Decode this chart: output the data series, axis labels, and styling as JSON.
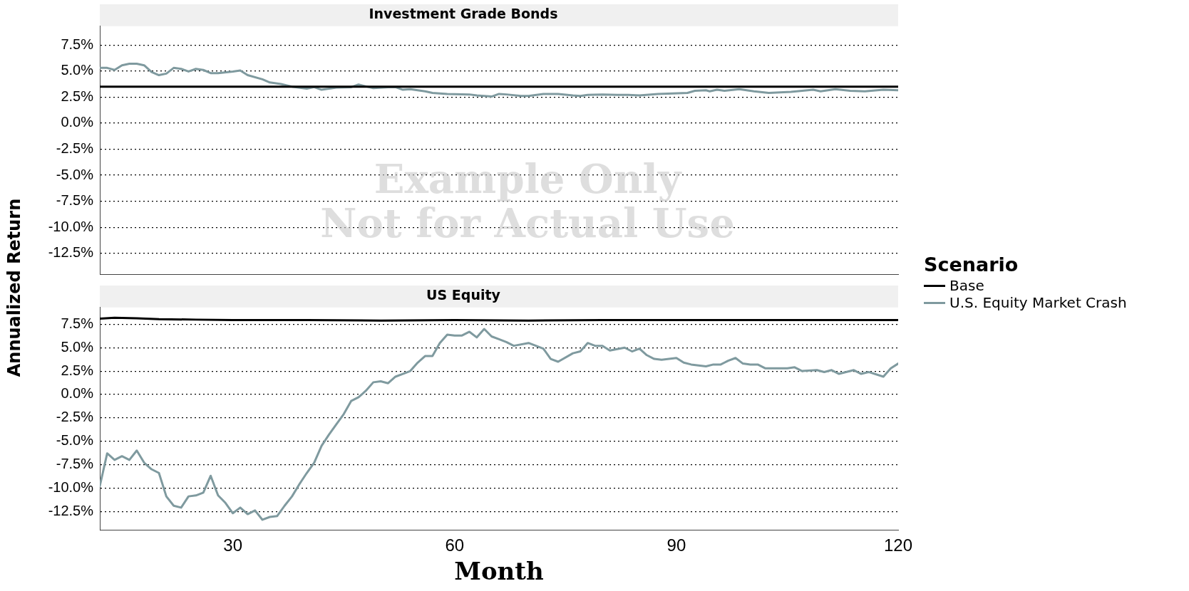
{
  "chart_data": [
    {
      "type": "line",
      "title": "Investment Grade Bonds",
      "ylabel": "Annualized Return",
      "legend_title": "Scenario",
      "legend": "right",
      "grid": "y",
      "marker": "none",
      "line_style": "solid",
      "tick_labels": "y",
      "annotations": [
        "Example Only\nNot for Actual Use"
      ],
      "xlim": [
        12,
        120
      ],
      "xticks": [
        30,
        60,
        90,
        120
      ],
      "ylim": [
        -14.5,
        9.3
      ],
      "yticks": [
        {
          "value": 7.5,
          "label": "7.5%"
        },
        {
          "value": 5,
          "label": "5.0%"
        },
        {
          "value": 2.5,
          "label": "2.5%"
        },
        {
          "value": 0,
          "label": "0.0%"
        },
        {
          "value": -2.5,
          "label": "-2.5%"
        },
        {
          "value": -5,
          "label": "-5.0%"
        },
        {
          "value": -7.5,
          "label": "-7.5%"
        },
        {
          "value": -10,
          "label": "-10.0%"
        },
        {
          "value": -12.5,
          "label": "-12.5%"
        }
      ],
      "series": [
        {
          "name": "Base",
          "color": "#000000",
          "x": [
            12,
            30,
            60,
            90,
            120
          ],
          "values": [
            3.5,
            3.5,
            3.5,
            3.5,
            3.5
          ]
        },
        {
          "name": "U.S. Equity Market Crash",
          "color": "#7f9a9f",
          "x": [
            12,
            13,
            14,
            15,
            16,
            17,
            18,
            19,
            20,
            21,
            22,
            23,
            24,
            25,
            26,
            27,
            28,
            30,
            31,
            32,
            34,
            35,
            36.5,
            38,
            40,
            41,
            42,
            44,
            46,
            47,
            49,
            51,
            52,
            53,
            54,
            56,
            57,
            59,
            62,
            63,
            65,
            66,
            67,
            69,
            70,
            72,
            74,
            76,
            77,
            78,
            80,
            82,
            83.5,
            85,
            87.5,
            91.5,
            92.5,
            94,
            94.5,
            95.5,
            96.5,
            98.5,
            100.5,
            102.5,
            105.5,
            108.5,
            109.5,
            111.5,
            113.5,
            115.5,
            118,
            120
          ],
          "values": [
            5.3,
            5.3,
            5.1,
            5.55,
            5.7,
            5.7,
            5.55,
            4.9,
            4.6,
            4.75,
            5.3,
            5.2,
            4.95,
            5.2,
            5.1,
            4.8,
            4.8,
            4.95,
            5.05,
            4.6,
            4.2,
            3.9,
            3.75,
            3.5,
            3.3,
            3.45,
            3.2,
            3.4,
            3.45,
            3.7,
            3.35,
            3.45,
            3.45,
            3.2,
            3.25,
            3.05,
            2.9,
            2.8,
            2.75,
            2.65,
            2.55,
            2.8,
            2.75,
            2.6,
            2.6,
            2.8,
            2.8,
            2.65,
            2.6,
            2.7,
            2.75,
            2.7,
            2.7,
            2.65,
            2.8,
            2.9,
            3.1,
            3.15,
            3.05,
            3.2,
            3.1,
            3.25,
            3.05,
            2.9,
            3.0,
            3.2,
            3.05,
            3.25,
            3.1,
            3.05,
            3.2,
            3.15
          ]
        }
      ]
    },
    {
      "type": "line",
      "title": "US Equity",
      "xlabel": "Month",
      "grid": "y",
      "marker": "none",
      "line_style": "solid",
      "legend": false,
      "xlim": [
        12,
        120
      ],
      "xticks": [
        30,
        60,
        90,
        120
      ],
      "ylim": [
        -14.5,
        9.3
      ],
      "yticks": [
        {
          "value": 7.5,
          "label": "7.5%"
        },
        {
          "value": 5,
          "label": "5.0%"
        },
        {
          "value": 2.5,
          "label": "2.5%"
        },
        {
          "value": 0,
          "label": "0.0%"
        },
        {
          "value": -2.5,
          "label": "-2.5%"
        },
        {
          "value": -5,
          "label": "-5.0%"
        },
        {
          "value": -7.5,
          "label": "-7.5%"
        },
        {
          "value": -10,
          "label": "-10.0%"
        },
        {
          "value": -12.5,
          "label": "-12.5%"
        }
      ],
      "series": [
        {
          "color": "#000000",
          "x": [
            12,
            14,
            17,
            20,
            25,
            30,
            40,
            50,
            60,
            70,
            80,
            90,
            100,
            110,
            120
          ],
          "values": [
            8.1,
            8.2,
            8.15,
            8.05,
            8.0,
            7.95,
            7.95,
            7.9,
            7.95,
            7.9,
            7.95,
            7.95,
            7.95,
            7.95,
            7.95
          ]
        },
        {
          "color": "#7f9a9f",
          "x": [
            12,
            13,
            14,
            15,
            16,
            17,
            18,
            19,
            20,
            21,
            22,
            23,
            24,
            25,
            26,
            27,
            28,
            29,
            30,
            31,
            32,
            33,
            34,
            35,
            36,
            37,
            38,
            39,
            40,
            41,
            42,
            43,
            44,
            45,
            46,
            47,
            48,
            49,
            50,
            51,
            52,
            53,
            54,
            55,
            56,
            57,
            58,
            59,
            60,
            61,
            62,
            63,
            64,
            65,
            66,
            67,
            68,
            70,
            72,
            73,
            74,
            76,
            77,
            78,
            79,
            80,
            81,
            83,
            84,
            85,
            86,
            87,
            88,
            90,
            91,
            92,
            94,
            95,
            96,
            97,
            98,
            99,
            100,
            101,
            102,
            105,
            106,
            107,
            109,
            110,
            111,
            112,
            114,
            115,
            116,
            118,
            119,
            120
          ],
          "values": [
            -9.8,
            -6.3,
            -7.0,
            -6.6,
            -7.0,
            -6.0,
            -7.3,
            -8.0,
            -8.4,
            -10.9,
            -11.9,
            -12.1,
            -10.9,
            -10.8,
            -10.5,
            -8.7,
            -10.8,
            -11.6,
            -12.7,
            -12.1,
            -12.8,
            -12.4,
            -13.4,
            -13.1,
            -13.0,
            -11.9,
            -10.9,
            -9.6,
            -8.4,
            -7.3,
            -5.5,
            -4.3,
            -3.2,
            -2.1,
            -0.7,
            -0.3,
            0.4,
            1.3,
            1.4,
            1.2,
            1.9,
            2.2,
            2.5,
            3.4,
            4.1,
            4.1,
            5.5,
            6.4,
            6.3,
            6.3,
            6.7,
            6.1,
            7.0,
            6.2,
            5.9,
            5.6,
            5.2,
            5.5,
            4.9,
            3.8,
            3.5,
            4.4,
            4.6,
            5.5,
            5.2,
            5.2,
            4.7,
            5.0,
            4.6,
            4.9,
            4.2,
            3.8,
            3.7,
            3.9,
            3.4,
            3.2,
            3.0,
            3.2,
            3.2,
            3.6,
            3.9,
            3.3,
            3.2,
            3.2,
            2.8,
            2.8,
            2.9,
            2.5,
            2.6,
            2.4,
            2.6,
            2.2,
            2.6,
            2.2,
            2.4,
            1.9,
            2.8,
            3.3
          ]
        }
      ]
    }
  ]
}
